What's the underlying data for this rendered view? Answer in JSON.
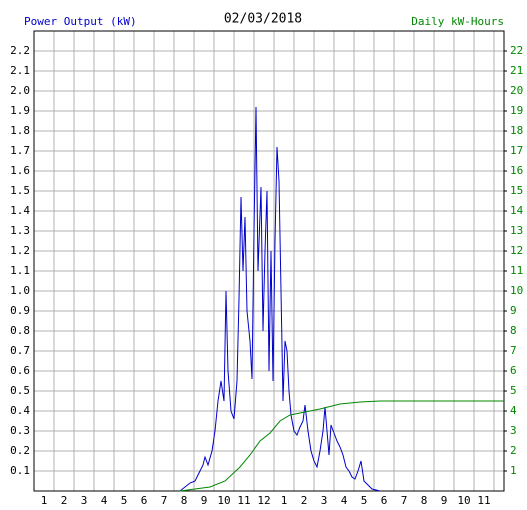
{
  "chart_data": {
    "type": "line",
    "title": "02/03/2018",
    "ylabel": "Power Output (kW)",
    "y2label": "Daily kW-Hours",
    "xlim": [
      0.5,
      24
    ],
    "xticks": [
      1,
      2,
      3,
      4,
      5,
      6,
      7,
      8,
      9,
      10,
      11,
      12,
      {
        "value": 13,
        "label": "1"
      },
      {
        "value": 14,
        "label": "2"
      },
      {
        "value": 15,
        "label": "3"
      },
      {
        "value": 16,
        "label": "4"
      },
      {
        "value": 17,
        "label": "5"
      },
      {
        "value": 18,
        "label": "6"
      },
      {
        "value": 19,
        "label": "7"
      },
      {
        "value": 20,
        "label": "8"
      },
      {
        "value": 21,
        "label": "9"
      },
      {
        "value": 22,
        "label": "10"
      },
      {
        "value": 23,
        "label": "11"
      }
    ],
    "ylim": [
      0,
      2.3
    ],
    "yticks": [
      0.1,
      0.2,
      0.3,
      0.4,
      0.5,
      0.6,
      0.7,
      0.8,
      0.9,
      {
        "value": 1,
        "label": "1.0"
      },
      1.1,
      1.2,
      1.3,
      1.4,
      1.5,
      1.6,
      1.7,
      1.8,
      1.9,
      {
        "value": 2,
        "label": "2.0"
      },
      2.1,
      2.2
    ],
    "y2lim": [
      0,
      23
    ],
    "y2ticks": [
      1,
      2,
      3,
      4,
      5,
      6,
      7,
      8,
      9,
      10,
      11,
      12,
      13,
      14,
      15,
      16,
      17,
      18,
      19,
      20,
      21,
      22
    ],
    "grid": true,
    "series": [
      {
        "color": "#0000cc",
        "axis": "y",
        "x": [
          7.8,
          8.3,
          8.55,
          8.8,
          8.95,
          9.05,
          9.2,
          9.4,
          9.55,
          9.7,
          9.85,
          10.0,
          10.1,
          10.2,
          10.35,
          10.5,
          10.65,
          10.75,
          10.85,
          10.95,
          11.05,
          11.15,
          11.3,
          11.4,
          11.5,
          11.6,
          11.7,
          11.85,
          11.95,
          12.05,
          12.15,
          12.25,
          12.35,
          12.45,
          12.55,
          12.65,
          12.75,
          12.85,
          12.95,
          13.05,
          13.15,
          13.25,
          13.35,
          13.5,
          13.65,
          13.8,
          13.95,
          14.05,
          14.2,
          14.35,
          14.5,
          14.65,
          14.8,
          14.95,
          15.05,
          15.15,
          15.25,
          15.35,
          15.5,
          15.65,
          15.8,
          15.95,
          16.1,
          16.25,
          16.4,
          16.55,
          16.7,
          16.85,
          17.0,
          17.2,
          17.4,
          17.8
        ],
        "values": [
          0,
          0.04,
          0.05,
          0.1,
          0.13,
          0.17,
          0.13,
          0.2,
          0.3,
          0.45,
          0.55,
          0.45,
          1.0,
          0.6,
          0.4,
          0.36,
          0.55,
          0.96,
          1.47,
          1.1,
          1.37,
          0.9,
          0.75,
          0.56,
          1.3,
          1.92,
          1.1,
          1.52,
          0.8,
          1.2,
          1.5,
          0.6,
          1.2,
          0.55,
          1.25,
          1.72,
          1.55,
          1.0,
          0.45,
          0.75,
          0.7,
          0.5,
          0.38,
          0.3,
          0.28,
          0.32,
          0.35,
          0.43,
          0.3,
          0.2,
          0.15,
          0.12,
          0.2,
          0.3,
          0.42,
          0.3,
          0.18,
          0.33,
          0.29,
          0.25,
          0.22,
          0.18,
          0.12,
          0.1,
          0.07,
          0.06,
          0.1,
          0.15,
          0.05,
          0.03,
          0.01,
          0
        ]
      },
      {
        "color": "#008800",
        "axis": "y2",
        "x": [
          7.8,
          9.3,
          10.05,
          10.8,
          11.3,
          11.8,
          12.3,
          12.8,
          13.3,
          13.8,
          14.8,
          15.8,
          16.8,
          17.8,
          24
        ],
        "values": [
          0,
          0.2,
          0.5,
          1.2,
          1.8,
          2.5,
          2.9,
          3.5,
          3.8,
          3.9,
          4.1,
          4.35,
          4.45,
          4.5,
          4.5
        ]
      }
    ]
  }
}
